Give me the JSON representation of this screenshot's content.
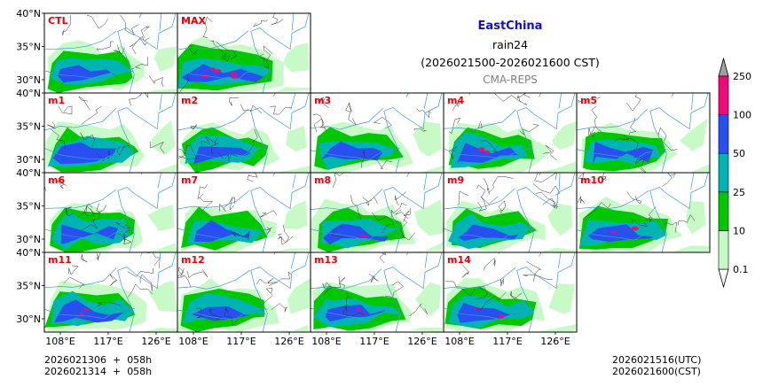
{
  "header": {
    "region": "EastChina",
    "variable": "rain24",
    "period": "(2026021500-2026021600 CST)",
    "source": "CMA-REPS"
  },
  "map": {
    "lat_ticks": [
      "40°N",
      "35°N",
      "30°N"
    ],
    "lon_ticks": [
      "108°E",
      "117°E",
      "126°E"
    ],
    "lat_values": [
      40,
      35,
      30
    ],
    "lon_values": [
      108,
      117,
      126
    ],
    "lat_range": [
      28,
      40
    ],
    "lon_range": [
      105,
      130
    ]
  },
  "panels": [
    {
      "label": "CTL",
      "seed": 11,
      "intensity": 1.0
    },
    {
      "label": "MAX",
      "seed": 23,
      "intensity": 1.35
    },
    {
      "label": "m1",
      "seed": 31,
      "intensity": 1.0
    },
    {
      "label": "m2",
      "seed": 47,
      "intensity": 0.95
    },
    {
      "label": "m3",
      "seed": 53,
      "intensity": 1.0
    },
    {
      "label": "m4",
      "seed": 61,
      "intensity": 1.05
    },
    {
      "label": "m5",
      "seed": 71,
      "intensity": 1.0
    },
    {
      "label": "m6",
      "seed": 83,
      "intensity": 1.0
    },
    {
      "label": "m7",
      "seed": 97,
      "intensity": 0.95
    },
    {
      "label": "m8",
      "seed": 101,
      "intensity": 1.05
    },
    {
      "label": "m9",
      "seed": 113,
      "intensity": 0.95
    },
    {
      "label": "m10",
      "seed": 127,
      "intensity": 1.1
    },
    {
      "label": "m11",
      "seed": 131,
      "intensity": 1.05
    },
    {
      "label": "m12",
      "seed": 139,
      "intensity": 1.0
    },
    {
      "label": "m13",
      "seed": 149,
      "intensity": 1.05
    },
    {
      "label": "m14",
      "seed": 151,
      "intensity": 1.05
    }
  ],
  "colorbar": {
    "levels": [
      "0.1",
      "10",
      "25",
      "50",
      "100",
      "250"
    ],
    "colors": [
      "#c8fac8",
      "#00c800",
      "#00b4b4",
      "#2850f0",
      "#f00a78"
    ],
    "over_color": "#a0a0a0",
    "under_color": "#ffffff"
  },
  "footer": {
    "init_utc": "2026021306  +  058h",
    "init_cst": "2026021314  +  058h",
    "valid_utc": "2026021516(UTC)",
    "valid_cst": "2026021600(CST)"
  },
  "colors": {
    "title_blue": "#1010c8",
    "source_gray": "#808080",
    "label_red": "#e8000b",
    "river": "#3c9ad2",
    "border": "#333333"
  }
}
